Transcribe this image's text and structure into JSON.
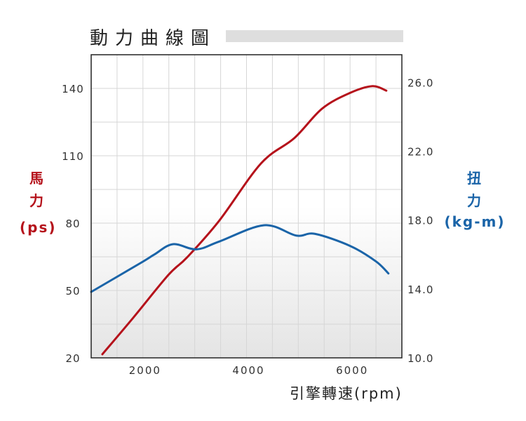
{
  "chart_data": {
    "type": "line",
    "title": "動力曲線圖",
    "xlabel": "引擎轉速(rpm)",
    "ylabel_left": {
      "line1": "馬",
      "line2": "力",
      "line3": "(ps)"
    },
    "ylabel_right": {
      "line1": "扭",
      "line2": "力",
      "line3": "(kg-m)"
    },
    "xlim": [
      1000,
      7000
    ],
    "ylim_left": [
      20,
      155
    ],
    "ylim_right": [
      10,
      27.6
    ],
    "x_ticks": [
      2000,
      4000,
      6000
    ],
    "x_tick_labels": [
      "2000",
      "4000",
      "6000"
    ],
    "y_left_ticks": [
      20,
      50,
      80,
      110,
      140
    ],
    "y_left_tick_labels": [
      "20",
      "50",
      "80",
      "110",
      "140"
    ],
    "y_right_ticks": [
      10,
      14,
      18,
      22,
      26
    ],
    "y_right_tick_labels": [
      "10.0",
      "14.0",
      "18.0",
      "22.0",
      "26.0"
    ],
    "grid": true,
    "series": [
      {
        "name": "馬力 (ps)",
        "axis": "left",
        "color": "#b5121b",
        "x": [
          1216,
          1810,
          2490,
          2850,
          3470,
          4280,
          4920,
          5460,
          6000,
          6430,
          6700
        ],
        "y": [
          21.6,
          37.8,
          56.9,
          64.7,
          81,
          106.6,
          117.8,
          131,
          138,
          141,
          139
        ]
      },
      {
        "name": "扭力 (kg-m)",
        "axis": "right",
        "color": "#1a64a8",
        "x": [
          1000,
          1950,
          2220,
          2580,
          3030,
          3470,
          4340,
          4960,
          5320,
          6000,
          6500,
          6740
        ],
        "y": [
          13.83,
          15.5,
          16.0,
          16.6,
          16.3,
          16.75,
          17.7,
          17.1,
          17.2,
          16.5,
          15.6,
          14.9
        ]
      }
    ]
  }
}
